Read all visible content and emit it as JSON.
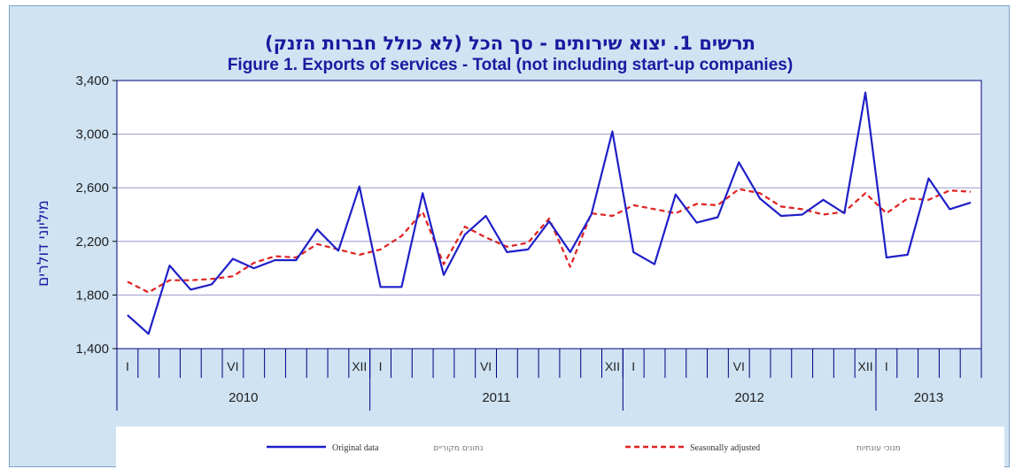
{
  "chart_data": {
    "type": "line",
    "title": "תרשים 1. יצוא שירותים - סך הכל (לא כולל חברות הזנק)",
    "subtitle": "Figure 1. Exports of services - Total (not including start-up companies)",
    "ylabel": "מיליוני דולרים",
    "xlabel": "",
    "ylim": [
      1400,
      3400
    ],
    "yticks": [
      1400,
      1800,
      2200,
      2600,
      3000,
      3400
    ],
    "ytick_labels": [
      "1,400",
      "1,800",
      "2,200",
      "2,600",
      "3,000",
      "3,400"
    ],
    "grid": true,
    "legend_position": "bottom",
    "x_count": 41,
    "month_labels": [
      {
        "index": 0,
        "label": "I"
      },
      {
        "index": 5,
        "label": "VI"
      },
      {
        "index": 11,
        "label": "XII"
      },
      {
        "index": 12,
        "label": "I"
      },
      {
        "index": 17,
        "label": "VI"
      },
      {
        "index": 23,
        "label": "XII"
      },
      {
        "index": 24,
        "label": "I"
      },
      {
        "index": 29,
        "label": "VI"
      },
      {
        "index": 35,
        "label": "XII"
      },
      {
        "index": 36,
        "label": "I"
      }
    ],
    "years": [
      {
        "label": "2010",
        "start": 0,
        "end": 12
      },
      {
        "label": "2011",
        "start": 12,
        "end": 24
      },
      {
        "label": "2012",
        "start": 24,
        "end": 36
      },
      {
        "label": "2013",
        "start": 36,
        "end": 41
      }
    ],
    "series": [
      {
        "name": "Original data",
        "name_he": "נתונים מקוריים",
        "color": "#1f1fc8",
        "dash": "solid",
        "values": [
          1650,
          1510,
          2020,
          1840,
          1880,
          2070,
          2000,
          2060,
          2060,
          2290,
          2130,
          2610,
          1860,
          1860,
          2560,
          1950,
          2250,
          2390,
          2120,
          2140,
          2350,
          2120,
          2400,
          3020,
          2120,
          2030,
          2550,
          2340,
          2380,
          2790,
          2520,
          2390,
          2400,
          2510,
          2410,
          3310,
          2080,
          2100,
          2670,
          2440,
          2490
        ]
      },
      {
        "name": "Seasonally adjusted",
        "name_he": "מנוכי עונתיות",
        "color": "#e02020",
        "dash": "dashed",
        "values": [
          1900,
          1820,
          1910,
          1910,
          1920,
          1940,
          2040,
          2090,
          2080,
          2180,
          2140,
          2100,
          2140,
          2240,
          2420,
          2030,
          2310,
          2230,
          2160,
          2190,
          2370,
          2010,
          2410,
          2390,
          2470,
          2440,
          2410,
          2480,
          2470,
          2590,
          2560,
          2460,
          2440,
          2400,
          2420,
          2560,
          2410,
          2520,
          2510,
          2580,
          2570
        ]
      }
    ]
  }
}
